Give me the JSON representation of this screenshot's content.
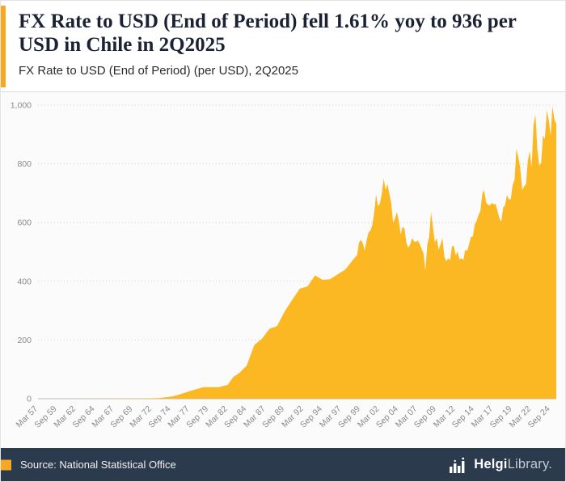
{
  "header": {
    "title": "FX Rate to USD (End of Period) fell 1.61% yoy to 936 per USD in Chile in 2Q2025",
    "subtitle": "FX Rate to USD (End of Period) (per USD), 2Q2025"
  },
  "footer": {
    "source": "Source: National Statistical Office",
    "logo_bold": "Helgi",
    "logo_rest": "Library."
  },
  "colors": {
    "accent": "#F7A823",
    "area_fill": "#FCB823",
    "footer_bg": "#2C3A4D",
    "grid_line": "#cfcfcf",
    "axis_text": "#8a8a8a",
    "title_text": "#1b2233"
  },
  "chart_data": {
    "type": "area",
    "title": "FX Rate to USD (End of Period) fell 1.61% yoy to 936 per USD in Chile in 2Q2025",
    "subtitle": "FX Rate to USD (End of Period) (per USD), 2Q2025",
    "unit": "per USD",
    "country": "Chile",
    "latest_value": 936,
    "latest_period": "2Q2025",
    "yoy_change_pct": -1.61,
    "grid": "horizontal-dotted",
    "legend": "none",
    "xlim": [
      1957.2,
      2025.5
    ],
    "ylim": [
      0,
      1000
    ],
    "color": "#FCB823",
    "yticks": [
      {
        "v": 0,
        "label": "0"
      },
      {
        "v": 200,
        "label": "200"
      },
      {
        "v": 400,
        "label": "400"
      },
      {
        "v": 600,
        "label": "600"
      },
      {
        "v": 800,
        "label": "800"
      },
      {
        "v": 1000,
        "label": "1,000"
      }
    ],
    "xticks": [
      {
        "v": 1957.2,
        "label": "Mar 57"
      },
      {
        "v": 1959.7,
        "label": "Sep 59"
      },
      {
        "v": 1962.2,
        "label": "Mar 62"
      },
      {
        "v": 1964.7,
        "label": "Sep 64"
      },
      {
        "v": 1967.2,
        "label": "Mar 67"
      },
      {
        "v": 1969.7,
        "label": "Sep 69"
      },
      {
        "v": 1972.2,
        "label": "Mar 72"
      },
      {
        "v": 1974.7,
        "label": "Sep 74"
      },
      {
        "v": 1977.2,
        "label": "Mar 77"
      },
      {
        "v": 1979.7,
        "label": "Sep 79"
      },
      {
        "v": 1982.2,
        "label": "Mar 82"
      },
      {
        "v": 1984.7,
        "label": "Sep 84"
      },
      {
        "v": 1987.2,
        "label": "Mar 87"
      },
      {
        "v": 1989.7,
        "label": "Sep 89"
      },
      {
        "v": 1992.2,
        "label": "Mar 92"
      },
      {
        "v": 1994.7,
        "label": "Sep 94"
      },
      {
        "v": 1997.2,
        "label": "Mar 97"
      },
      {
        "v": 1999.7,
        "label": "Sep 99"
      },
      {
        "v": 2002.2,
        "label": "Mar 02"
      },
      {
        "v": 2004.7,
        "label": "Sep 04"
      },
      {
        "v": 2007.2,
        "label": "Mar 07"
      },
      {
        "v": 2009.7,
        "label": "Sep 09"
      },
      {
        "v": 2012.2,
        "label": "Mar 12"
      },
      {
        "v": 2014.7,
        "label": "Sep 14"
      },
      {
        "v": 2017.2,
        "label": "Mar 17"
      },
      {
        "v": 2019.7,
        "label": "Sep 19"
      },
      {
        "v": 2022.2,
        "label": "Mar 22"
      },
      {
        "v": 2024.7,
        "label": "Sep 24"
      }
    ],
    "series": [
      {
        "name": "FX Rate to USD (End of Period), per USD",
        "points": [
          [
            1957.2,
            0.1
          ],
          [
            1959,
            0.1
          ],
          [
            1961,
            0.1
          ],
          [
            1963,
            0.2
          ],
          [
            1965,
            0.3
          ],
          [
            1967,
            0.5
          ],
          [
            1969,
            0.8
          ],
          [
            1971,
            1
          ],
          [
            1973,
            2
          ],
          [
            1974,
            5
          ],
          [
            1975,
            8
          ],
          [
            1976,
            16
          ],
          [
            1977,
            24
          ],
          [
            1978,
            32
          ],
          [
            1979,
            39
          ],
          [
            1980,
            39
          ],
          [
            1981,
            39
          ],
          [
            1982.2,
            47
          ],
          [
            1982.9,
            73
          ],
          [
            1983.7,
            87
          ],
          [
            1984.7,
            113
          ],
          [
            1985.7,
            183
          ],
          [
            1986.7,
            204
          ],
          [
            1987.7,
            238
          ],
          [
            1988.7,
            247
          ],
          [
            1989.7,
            297
          ],
          [
            1990.7,
            337
          ],
          [
            1991.7,
            375
          ],
          [
            1992.7,
            382
          ],
          [
            1993.7,
            420
          ],
          [
            1994.7,
            405
          ],
          [
            1995.7,
            407
          ],
          [
            1996.7,
            424
          ],
          [
            1997.7,
            440
          ],
          [
            1998.7,
            473
          ],
          [
            1999.25,
            489
          ],
          [
            1999.5,
            532
          ],
          [
            1999.75,
            541
          ],
          [
            2000.0,
            530
          ],
          [
            2000.25,
            504
          ],
          [
            2000.5,
            539
          ],
          [
            2000.75,
            566
          ],
          [
            2001.0,
            573
          ],
          [
            2001.25,
            591
          ],
          [
            2001.5,
            634
          ],
          [
            2001.75,
            695
          ],
          [
            2002.0,
            656
          ],
          [
            2002.25,
            664
          ],
          [
            2002.5,
            697
          ],
          [
            2002.75,
            750
          ],
          [
            2003.0,
            712
          ],
          [
            2003.25,
            731
          ],
          [
            2003.5,
            699
          ],
          [
            2003.75,
            665
          ],
          [
            2004.0,
            599
          ],
          [
            2004.25,
            616
          ],
          [
            2004.5,
            636
          ],
          [
            2004.75,
            606
          ],
          [
            2005.0,
            559
          ],
          [
            2005.25,
            586
          ],
          [
            2005.5,
            579
          ],
          [
            2005.75,
            531
          ],
          [
            2006.0,
            514
          ],
          [
            2006.25,
            526
          ],
          [
            2006.5,
            547
          ],
          [
            2006.75,
            537
          ],
          [
            2007.0,
            534
          ],
          [
            2007.25,
            539
          ],
          [
            2007.5,
            527
          ],
          [
            2007.75,
            511
          ],
          [
            2008.0,
            495
          ],
          [
            2008.25,
            437
          ],
          [
            2008.5,
            526
          ],
          [
            2008.75,
            551
          ],
          [
            2009.0,
            636
          ],
          [
            2009.25,
            583
          ],
          [
            2009.5,
            534
          ],
          [
            2009.75,
            546
          ],
          [
            2010.0,
            507
          ],
          [
            2010.25,
            526
          ],
          [
            2010.5,
            547
          ],
          [
            2010.75,
            483
          ],
          [
            2011.0,
            468
          ],
          [
            2011.25,
            479
          ],
          [
            2011.5,
            471
          ],
          [
            2011.75,
            519
          ],
          [
            2012.0,
            521
          ],
          [
            2012.25,
            489
          ],
          [
            2012.5,
            501
          ],
          [
            2012.75,
            474
          ],
          [
            2013.0,
            479
          ],
          [
            2013.25,
            472
          ],
          [
            2013.5,
            507
          ],
          [
            2013.75,
            504
          ],
          [
            2014.0,
            525
          ],
          [
            2014.25,
            551
          ],
          [
            2014.5,
            553
          ],
          [
            2014.75,
            593
          ],
          [
            2015.0,
            606
          ],
          [
            2015.25,
            626
          ],
          [
            2015.5,
            639
          ],
          [
            2015.75,
            698
          ],
          [
            2016.0,
            710
          ],
          [
            2016.25,
            669
          ],
          [
            2016.5,
            661
          ],
          [
            2016.75,
            658
          ],
          [
            2017.0,
            667
          ],
          [
            2017.25,
            662
          ],
          [
            2017.5,
            664
          ],
          [
            2017.75,
            639
          ],
          [
            2018.0,
            615
          ],
          [
            2018.25,
            603
          ],
          [
            2018.5,
            651
          ],
          [
            2018.75,
            660
          ],
          [
            2019.0,
            694
          ],
          [
            2019.25,
            680
          ],
          [
            2019.5,
            679
          ],
          [
            2019.75,
            728
          ],
          [
            2020.0,
            745
          ],
          [
            2020.25,
            852
          ],
          [
            2020.5,
            821
          ],
          [
            2020.75,
            788
          ],
          [
            2021.0,
            711
          ],
          [
            2021.25,
            722
          ],
          [
            2021.5,
            732
          ],
          [
            2021.75,
            811
          ],
          [
            2022.0,
            844
          ],
          [
            2022.25,
            787
          ],
          [
            2022.5,
            932
          ],
          [
            2022.75,
            969
          ],
          [
            2023.0,
            851
          ],
          [
            2023.25,
            794
          ],
          [
            2023.5,
            802
          ],
          [
            2023.75,
            897
          ],
          [
            2024.0,
            885
          ],
          [
            2024.25,
            982
          ],
          [
            2024.5,
            951
          ],
          [
            2024.75,
            897
          ],
          [
            2025.0,
            996
          ],
          [
            2025.25,
            951
          ],
          [
            2025.5,
            936
          ]
        ]
      }
    ]
  }
}
